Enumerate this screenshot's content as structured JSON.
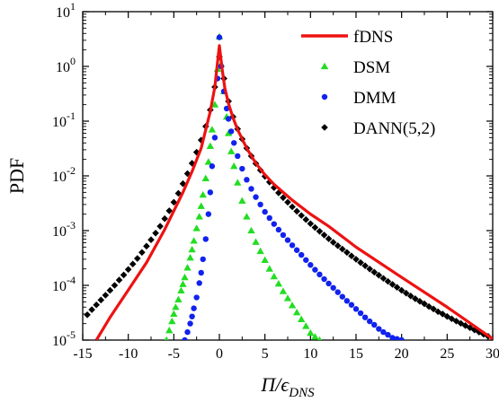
{
  "chart_data": {
    "type": "line",
    "title": "",
    "xlabel": "Π/ϵ",
    "xlabel_sub": "DNS",
    "ylabel": "PDF",
    "xlim": [
      -15,
      30
    ],
    "ylim": [
      1e-05,
      10
    ],
    "yscale": "log",
    "legend": "top-right",
    "x_ticks": [
      -15,
      -10,
      -5,
      0,
      5,
      10,
      15,
      20,
      25,
      30
    ],
    "x_tick_labels": [
      "-15",
      "-10",
      "-5",
      "0",
      "5",
      "10",
      "15",
      "20",
      "25",
      "30"
    ],
    "y_ticks": [
      1e-05,
      0.0001,
      0.001,
      0.01,
      0.1,
      1,
      10
    ],
    "y_tick_labels": [
      {
        "base": "10",
        "exp": "-5"
      },
      {
        "base": "10",
        "exp": "-4"
      },
      {
        "base": "10",
        "exp": "-3"
      },
      {
        "base": "10",
        "exp": "-2"
      },
      {
        "base": "10",
        "exp": "-1"
      },
      {
        "base": "10",
        "exp": "0"
      },
      {
        "base": "10",
        "exp": "1"
      }
    ],
    "series": [
      {
        "name": "fDNS",
        "style": "line",
        "color": "#ee1111",
        "x": [
          -13.5,
          -12,
          -10,
          -8,
          -6,
          -4,
          -3,
          -2,
          -1,
          -0.5,
          -0.2,
          0,
          0.3,
          0.6,
          1,
          1.5,
          2,
          3,
          4,
          5,
          6,
          8,
          10,
          12,
          15,
          20,
          25,
          30
        ],
        "y": [
          1e-05,
          2.6e-05,
          8.2e-05,
          0.00026,
          0.00105,
          0.005,
          0.012,
          0.032,
          0.15,
          0.42,
          1.2,
          2.4,
          0.9,
          0.4,
          0.21,
          0.115,
          0.07,
          0.032,
          0.017,
          0.0105,
          0.007,
          0.0036,
          0.002,
          0.0012,
          0.0005,
          0.00014,
          4e-05,
          1.05e-05
        ]
      },
      {
        "name": "DSM",
        "style": "triangle",
        "color": "#22dd22",
        "x": [
          -5.8,
          -5.5,
          -5.2,
          -5,
          -4.8,
          -4.5,
          -4.2,
          -4,
          -3.8,
          -3.5,
          -3.2,
          -3,
          -2.8,
          -2.5,
          -2.2,
          -2,
          -1.8,
          -1.5,
          -1.2,
          -1,
          -0.8,
          -0.5,
          -0.2,
          0,
          0.2,
          0.5,
          0.8,
          1,
          1.3,
          1.6,
          2,
          2.5,
          3,
          3.5,
          4,
          4.5,
          5,
          5.5,
          6,
          6.5,
          7,
          7.5,
          8,
          8.5,
          9,
          9.5,
          10,
          10.5,
          11
        ],
        "y": [
          1e-05,
          1.5e-05,
          2.2e-05,
          3e-05,
          4e-05,
          5.5e-05,
          8e-05,
          0.000105,
          0.00014,
          0.00021,
          0.00032,
          0.00045,
          0.00065,
          0.0011,
          0.0018,
          0.0028,
          0.0045,
          0.009,
          0.018,
          0.035,
          0.07,
          0.2,
          0.9,
          3.5,
          1.1,
          0.35,
          0.12,
          0.06,
          0.028,
          0.015,
          0.0075,
          0.0035,
          0.0018,
          0.001,
          0.00062,
          0.00042,
          0.00029,
          0.0002,
          0.000145,
          0.000107,
          7.8e-05,
          5.8e-05,
          4.3e-05,
          3.2e-05,
          2.4e-05,
          1.8e-05,
          1.35e-05,
          1.15e-05,
          1e-05
        ]
      },
      {
        "name": "DMM",
        "style": "circle",
        "color": "#1122ee",
        "x": [
          -3.8,
          -3.5,
          -3.2,
          -3,
          -2.8,
          -2.5,
          -2.2,
          -2,
          -1.8,
          -1.5,
          -1.2,
          -1,
          -0.8,
          -0.5,
          -0.2,
          0,
          0.2,
          0.5,
          0.8,
          1,
          1.3,
          1.6,
          2,
          2.5,
          3,
          3.5,
          4,
          4.5,
          5,
          5.5,
          6,
          6.5,
          7,
          7.5,
          8,
          8.5,
          9,
          9.5,
          10,
          10.5,
          11,
          11.5,
          12,
          12.5,
          13,
          13.5,
          14,
          14.5,
          15,
          15.5,
          16,
          16.5,
          17,
          17.5,
          18,
          18.5,
          19,
          19.5,
          20
        ],
        "y": [
          1e-05,
          1.4e-05,
          2e-05,
          2.7e-05,
          3.8e-05,
          6e-05,
          0.00011,
          0.00017,
          0.0003,
          0.0007,
          0.002,
          0.005,
          0.015,
          0.05,
          0.6,
          3.4,
          1.0,
          0.35,
          0.17,
          0.11,
          0.065,
          0.04,
          0.023,
          0.0135,
          0.0085,
          0.0058,
          0.0041,
          0.003,
          0.0022,
          0.0017,
          0.00132,
          0.00104,
          0.00083,
          0.00067,
          0.00054,
          0.00044,
          0.00036,
          0.00029,
          0.000236,
          0.000193,
          0.000158,
          0.00013,
          0.000108,
          9e-05,
          7.5e-05,
          6.2e-05,
          5.2e-05,
          4.4e-05,
          3.7e-05,
          3.1e-05,
          2.6e-05,
          2.2e-05,
          1.9e-05,
          1.6e-05,
          1.4e-05,
          1.25e-05,
          1.1e-05,
          1.05e-05,
          1e-05
        ]
      },
      {
        "name": "DANN(5,2)",
        "style": "diamond",
        "color": "#000000",
        "x": [
          -14.5,
          -14,
          -13.5,
          -13,
          -12.5,
          -12,
          -11.5,
          -11,
          -10.5,
          -10,
          -9.5,
          -9,
          -8.5,
          -8,
          -7.5,
          -7,
          -6.5,
          -6,
          -5.5,
          -5,
          -4.5,
          -4,
          -3.5,
          -3,
          -2.5,
          -2,
          -1.5,
          -1,
          -0.5,
          0,
          0.5,
          1,
          1.5,
          2,
          2.5,
          3,
          3.5,
          4,
          4.5,
          5,
          5.5,
          6,
          6.5,
          7,
          7.5,
          8,
          8.5,
          9,
          9.5,
          10,
          10.5,
          11,
          11.5,
          12,
          12.5,
          13,
          13.5,
          14,
          14.5,
          15,
          15.5,
          16,
          16.5,
          17,
          17.5,
          18,
          18.5,
          19,
          19.5,
          20,
          20.5,
          21,
          21.5,
          22,
          22.5,
          23,
          23.5,
          24,
          24.5,
          25,
          25.5,
          26,
          26.5,
          27,
          27.5,
          28,
          28.5,
          29,
          29.5
        ],
        "y": [
          2.9e-05,
          3.6e-05,
          4.4e-05,
          5.4e-05,
          6.6e-05,
          8.1e-05,
          0.0001,
          0.000125,
          0.000155,
          0.000195,
          0.000245,
          0.00031,
          0.0004,
          0.00052,
          0.00068,
          0.0009,
          0.0012,
          0.00165,
          0.0023,
          0.0033,
          0.0048,
          0.0072,
          0.011,
          0.017,
          0.027,
          0.045,
          0.08,
          0.16,
          0.42,
          1.5,
          0.6,
          0.23,
          0.12,
          0.072,
          0.047,
          0.032,
          0.023,
          0.0168,
          0.0127,
          0.0098,
          0.0077,
          0.0061,
          0.0049,
          0.004,
          0.0033,
          0.00272,
          0.00226,
          0.00189,
          0.00159,
          0.00134,
          0.00114,
          0.00097,
          0.00083,
          0.00071,
          0.00061,
          0.00053,
          0.00046,
          0.0004,
          0.000345,
          0.0003,
          0.00026,
          0.000228,
          0.000199,
          0.000174,
          0.000153,
          0.000134,
          0.000118,
          0.000104,
          9.2e-05,
          8.1e-05,
          7.2e-05,
          6.4e-05,
          5.7e-05,
          5.1e-05,
          4.6e-05,
          4.1e-05,
          3.7e-05,
          3.3e-05,
          3e-05,
          2.7e-05,
          2.45e-05,
          2.22e-05,
          2.02e-05,
          1.84e-05,
          1.68e-05,
          1.53e-05,
          1.4e-05,
          1.28e-05,
          1.17e-05
        ]
      }
    ]
  }
}
